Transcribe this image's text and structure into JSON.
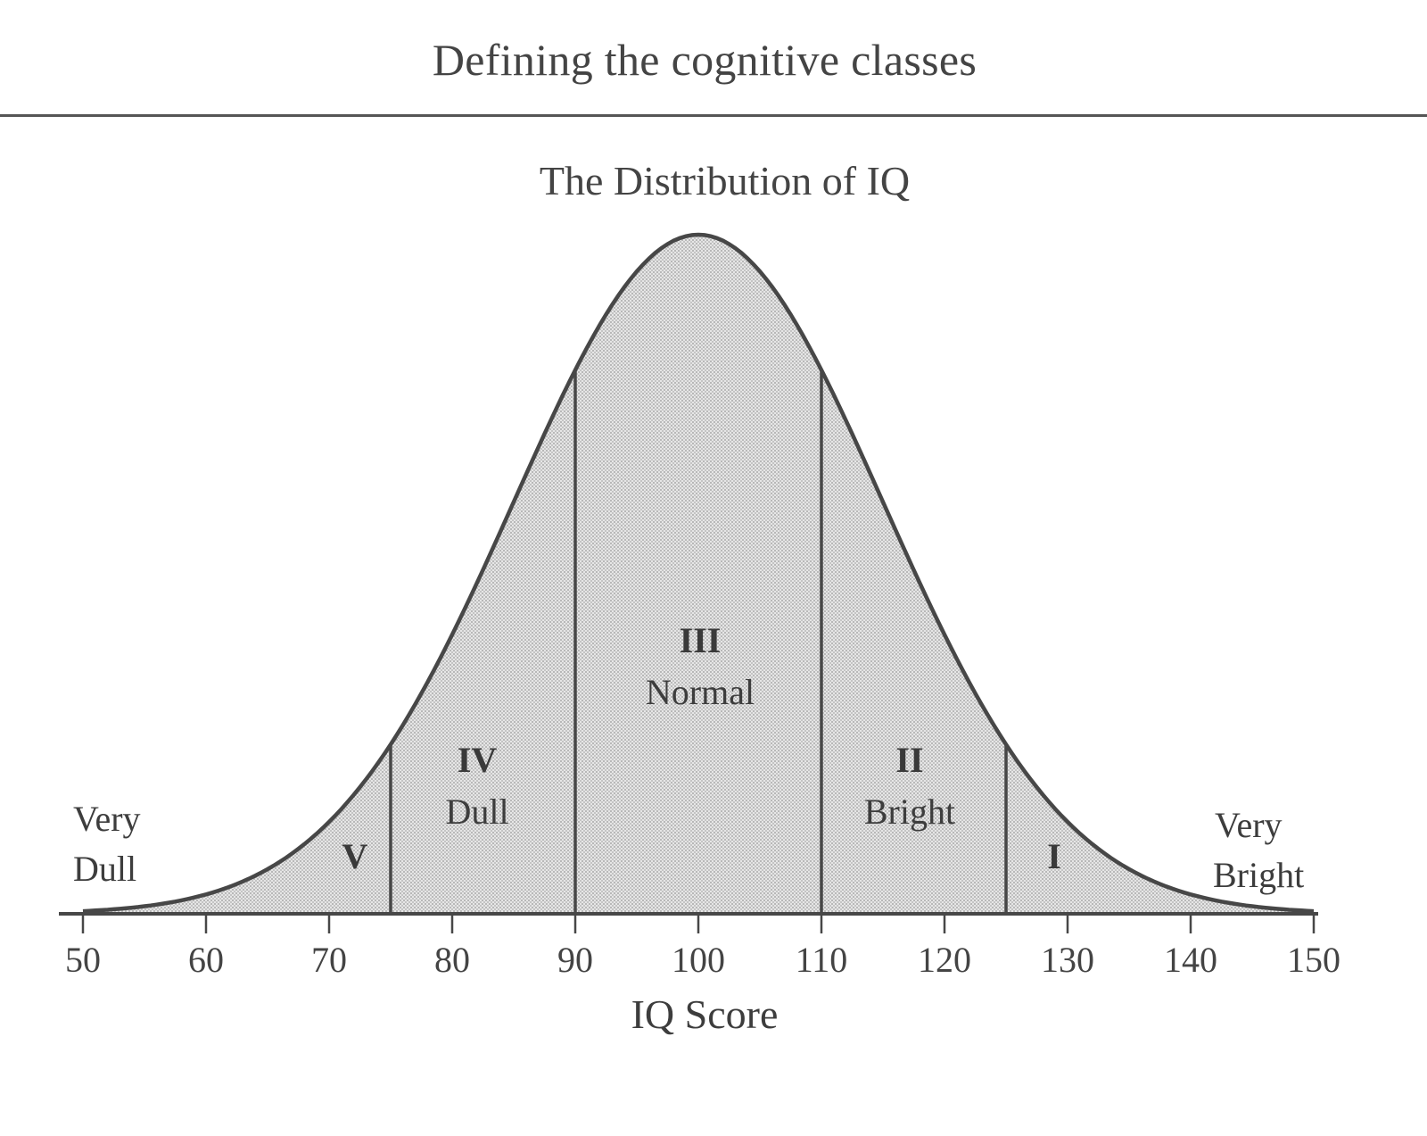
{
  "page": {
    "heading": "Defining the cognitive classes"
  },
  "chart_data": {
    "type": "area",
    "title": "The Distribution of IQ",
    "xlabel": "IQ Score",
    "ylabel": "",
    "distribution": "normal",
    "mean": 100,
    "sd": 15,
    "xlim": [
      50,
      150
    ],
    "x_ticks": [
      50,
      60,
      70,
      80,
      90,
      100,
      110,
      120,
      130,
      140,
      150
    ],
    "class_boundaries": [
      75,
      90,
      110,
      125
    ],
    "classes": [
      {
        "numeral": "V",
        "name": "",
        "range": [
          50,
          75
        ]
      },
      {
        "numeral": "IV",
        "name": "Dull",
        "range": [
          75,
          90
        ]
      },
      {
        "numeral": "III",
        "name": "Normal",
        "range": [
          90,
          110
        ]
      },
      {
        "numeral": "II",
        "name": "Bright",
        "range": [
          110,
          125
        ]
      },
      {
        "numeral": "I",
        "name": "",
        "range": [
          125,
          150
        ]
      }
    ],
    "annotations": [
      {
        "text": "Very Dull",
        "position": "left tail"
      },
      {
        "text": "Very Bright",
        "position": "right tail"
      }
    ],
    "grid": false,
    "legend": "none",
    "fill_color": "#d4d4d4",
    "line_color": "#444444"
  },
  "labels": {
    "very_dull_1": "Very",
    "very_dull_2": "Dull",
    "very_bright_1": "Very",
    "very_bright_2": "Bright",
    "class_v": "V",
    "class_iv": "IV",
    "class_iv_name": "Dull",
    "class_iii": "III",
    "class_iii_name": "Normal",
    "class_ii": "II",
    "class_ii_name": "Bright",
    "class_i": "I"
  },
  "ticks": [
    "50",
    "60",
    "70",
    "80",
    "90",
    "100",
    "110",
    "120",
    "130",
    "140",
    "150"
  ]
}
